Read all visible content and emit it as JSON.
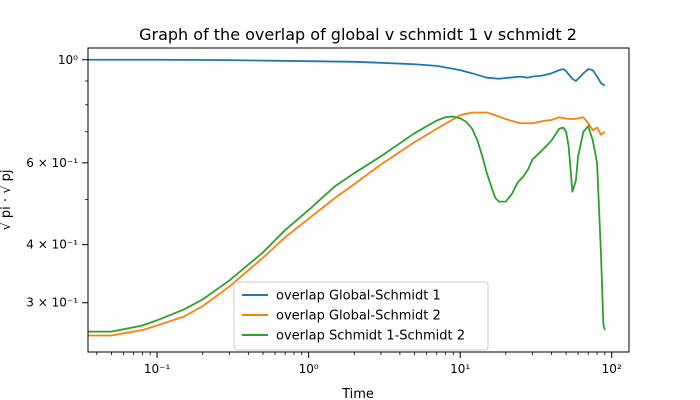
{
  "chart_data": {
    "type": "line",
    "title": "Graph of the overlap of global v schmidt 1 v schmidt 2",
    "xlabel": "Time",
    "ylabel": "√ pi · √ pj",
    "xscale": "log",
    "yscale": "log",
    "xlim": [
      0.035,
      130
    ],
    "ylim": [
      0.235,
      1.06
    ],
    "x_ticks": [
      {
        "value": 0.1,
        "label": "10⁻¹"
      },
      {
        "value": 1,
        "label": "10⁰"
      },
      {
        "value": 10,
        "label": "10¹"
      },
      {
        "value": 100,
        "label": "10²"
      }
    ],
    "y_ticks": [
      {
        "value": 0.3,
        "label": "3 × 10⁻¹"
      },
      {
        "value": 0.4,
        "label": "4 × 10⁻¹"
      },
      {
        "value": 0.6,
        "label": "6 × 10⁻¹"
      },
      {
        "value": 1.0,
        "label": "10⁰"
      }
    ],
    "legend_position": "lower-center",
    "grid": false,
    "series": [
      {
        "name": "overlap Global-Schmidt 1",
        "color": "#1f77b4",
        "x": [
          0.035,
          0.1,
          0.3,
          1,
          2,
          3,
          5,
          7,
          10,
          12,
          15,
          18,
          21,
          25,
          28,
          30,
          35,
          40,
          45,
          48,
          50,
          55,
          58,
          60,
          65,
          70,
          75,
          80,
          85,
          90
        ],
        "y": [
          1.0,
          1.0,
          0.998,
          0.993,
          0.99,
          0.985,
          0.978,
          0.97,
          0.95,
          0.935,
          0.915,
          0.91,
          0.915,
          0.92,
          0.915,
          0.92,
          0.925,
          0.935,
          0.95,
          0.955,
          0.945,
          0.91,
          0.9,
          0.91,
          0.935,
          0.955,
          0.95,
          0.92,
          0.89,
          0.88
        ]
      },
      {
        "name": "overlap Global-Schmidt 2",
        "color": "#ff7f0e",
        "x": [
          0.035,
          0.05,
          0.08,
          0.1,
          0.15,
          0.2,
          0.3,
          0.5,
          0.7,
          1,
          1.5,
          2,
          3,
          5,
          7,
          10,
          12,
          15,
          18,
          20,
          25,
          30,
          35,
          40,
          45,
          50,
          55,
          60,
          65,
          70,
          75,
          80,
          85,
          90
        ],
        "y": [
          0.255,
          0.255,
          0.262,
          0.268,
          0.28,
          0.295,
          0.325,
          0.375,
          0.415,
          0.455,
          0.505,
          0.54,
          0.595,
          0.665,
          0.71,
          0.76,
          0.77,
          0.77,
          0.755,
          0.745,
          0.73,
          0.73,
          0.738,
          0.742,
          0.752,
          0.747,
          0.745,
          0.748,
          0.752,
          0.73,
          0.705,
          0.715,
          0.69,
          0.7
        ]
      },
      {
        "name": "overlap Schmidt 1-Schmidt 2",
        "color": "#2ca02c",
        "x": [
          0.035,
          0.05,
          0.08,
          0.1,
          0.15,
          0.2,
          0.3,
          0.5,
          0.7,
          1,
          1.5,
          2,
          3,
          5,
          7,
          8,
          9,
          10,
          11,
          12,
          13,
          14,
          15,
          16,
          17,
          18,
          20,
          22,
          24,
          26,
          28,
          30,
          35,
          40,
          45,
          48,
          50,
          52,
          55,
          58,
          60,
          65,
          70,
          75,
          80,
          85,
          88,
          90
        ],
        "y": [
          0.26,
          0.26,
          0.268,
          0.275,
          0.29,
          0.305,
          0.335,
          0.385,
          0.43,
          0.475,
          0.535,
          0.57,
          0.62,
          0.695,
          0.74,
          0.752,
          0.755,
          0.748,
          0.735,
          0.71,
          0.67,
          0.62,
          0.57,
          0.535,
          0.505,
          0.495,
          0.495,
          0.515,
          0.545,
          0.56,
          0.58,
          0.61,
          0.64,
          0.67,
          0.71,
          0.715,
          0.7,
          0.65,
          0.52,
          0.55,
          0.62,
          0.7,
          0.72,
          0.67,
          0.6,
          0.38,
          0.27,
          0.262
        ]
      }
    ]
  }
}
